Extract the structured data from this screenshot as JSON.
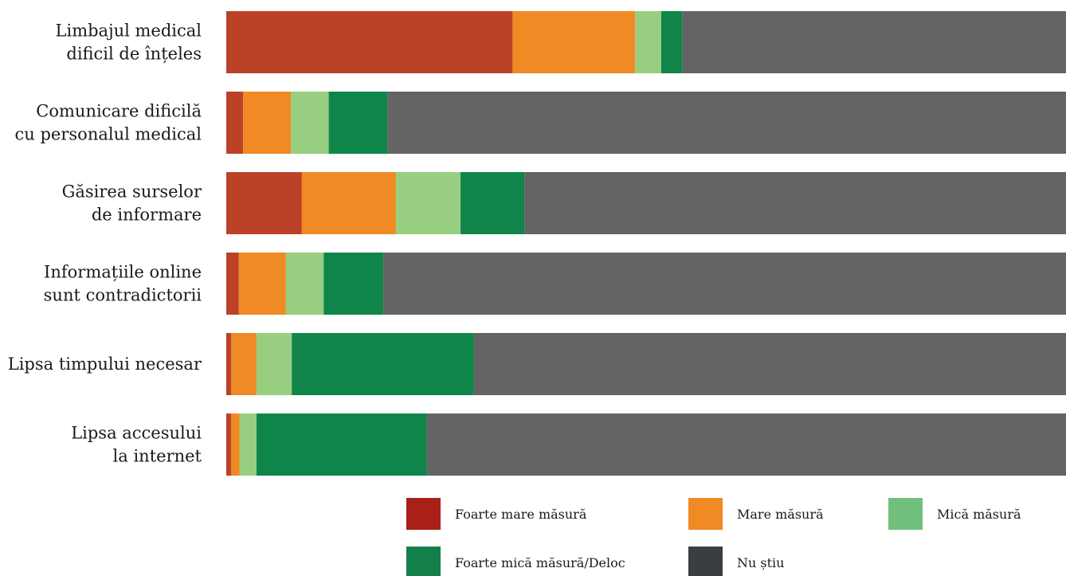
{
  "chart_data": {
    "type": "bar",
    "orientation": "horizontal",
    "stacked": true,
    "title": "",
    "xlabel": "",
    "ylabel": "",
    "xlim": [
      0,
      100
    ],
    "grid": false,
    "legend_position": "bottom-right",
    "categories": [
      [
        "Limbajul medical",
        "dificil de înțeles"
      ],
      [
        "Comunicare dificilă",
        "cu personalul medical"
      ],
      [
        "Găsirea surselor",
        "de informare"
      ],
      [
        "Informațiile online",
        "sunt contradictorii"
      ],
      [
        "Lipsa timpului necesar"
      ],
      [
        "Lipsa accesului",
        "la internet"
      ]
    ],
    "series": [
      {
        "name": "Foarte mare măsură",
        "color": "#bb4128",
        "legend_color": "#a82018",
        "values": [
          34.1,
          2.0,
          9.0,
          1.5,
          0.6,
          0.6
        ]
      },
      {
        "name": "Mare măsură",
        "color": "#ef8a24",
        "legend_color": "#ef8a24",
        "values": [
          14.6,
          5.7,
          11.2,
          5.6,
          3.0,
          1.0
        ]
      },
      {
        "name": "Mică măsură",
        "color": "#98ce80",
        "legend_color": "#70c07c",
        "values": [
          3.1,
          4.5,
          7.7,
          4.5,
          4.2,
          2.0
        ]
      },
      {
        "name": "Foarte mică măsură/Deloc",
        "color": "#10854a",
        "legend_color": "#13804a",
        "values": [
          2.5,
          7.0,
          7.6,
          7.1,
          21.7,
          20.3
        ]
      },
      {
        "name": "Nu știu",
        "color": "#646464",
        "legend_color": "#393e42",
        "values": [
          45.7,
          80.8,
          64.5,
          81.3,
          70.5,
          76.1
        ]
      }
    ]
  }
}
